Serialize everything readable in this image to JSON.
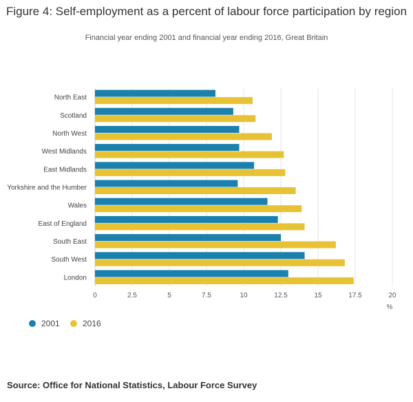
{
  "title": "Figure 4: Self-employment as a percent of labour force participation by region",
  "subtitle": "Financial year ending 2001 and financial year ending 2016, Great Britain",
  "source": "Source: Office for National Statistics, Labour Force Survey",
  "chart_data": {
    "type": "bar",
    "orientation": "horizontal",
    "title": "Figure 4: Self-employment as a percent of labour force participation by region",
    "subtitle": "Financial year ending 2001 and financial year ending 2016, Great Britain",
    "categories": [
      "North East",
      "Scotland",
      "North West",
      "West Midlands",
      "East Midlands",
      "Yorkshire and the Humber",
      "Wales",
      "East of England",
      "South East",
      "South West",
      "London"
    ],
    "series": [
      {
        "name": "2001",
        "color": "#1a80ad",
        "values": [
          8.1,
          9.3,
          9.7,
          9.7,
          10.7,
          9.6,
          11.6,
          12.3,
          12.5,
          14.1,
          13.0
        ]
      },
      {
        "name": "2016",
        "color": "#e8c235",
        "values": [
          10.6,
          10.8,
          11.9,
          12.7,
          12.8,
          13.5,
          13.9,
          14.1,
          16.2,
          16.8,
          17.4
        ]
      }
    ],
    "xlabel": "%",
    "ylabel": "",
    "xlim": [
      0,
      20
    ],
    "xticks": [
      "0",
      "2.5",
      "5",
      "7.5",
      "10",
      "12.5",
      "15",
      "17.5",
      "20"
    ],
    "grid": true,
    "legend": "bottom-left"
  }
}
